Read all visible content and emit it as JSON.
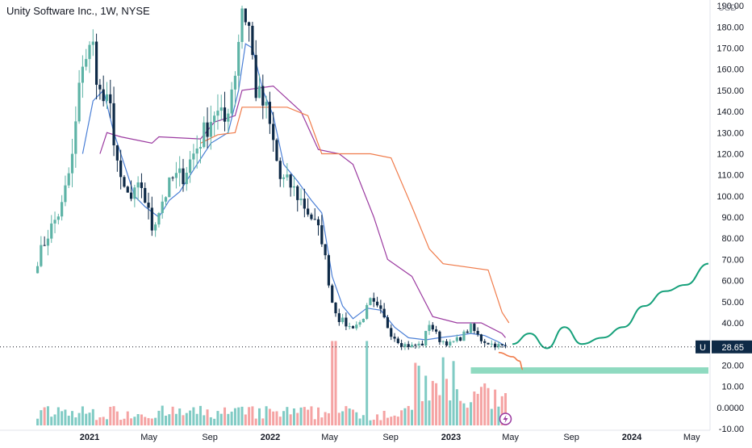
{
  "header": {
    "title": "Unity Software Inc., 1W, NYSE",
    "currency": "USD"
  },
  "last_price": {
    "symbol": "U",
    "value": "28.65"
  },
  "colors": {
    "up": "#5db3a6",
    "down": "#0e2a47",
    "vol_up": "#80cbc4",
    "vol_down": "#f5a3a3",
    "fast_line": "#4a7fd6",
    "mid_line": "#9b3aa0",
    "slow_line": "#f07b4a",
    "projection": "#15a07a",
    "zone": "#7bd3b5",
    "price_line": "#131722"
  },
  "chart_data": {
    "type": "candlestick",
    "title": "Unity Software Inc., 1W, NYSE",
    "y_axis": {
      "range": [
        -10,
        195
      ],
      "ticks": [
        "190.00",
        "180.00",
        "170.00",
        "160.00",
        "150.00",
        "140.00",
        "130.00",
        "120.00",
        "110.00",
        "100.00",
        "90.00",
        "80.00",
        "70.00",
        "60.00",
        "50.00",
        "40.00",
        "30.00",
        "20.00",
        "10.00",
        "0.0000",
        "-10.00"
      ],
      "tick_values": [
        190,
        180,
        170,
        160,
        150,
        140,
        130,
        120,
        110,
        100,
        90,
        80,
        70,
        60,
        50,
        40,
        30,
        20,
        10,
        0,
        -10
      ]
    },
    "x_axis": {
      "ticks": [
        {
          "label": "2021",
          "date": "2021-01-01",
          "bold": true
        },
        {
          "label": "May",
          "date": "2021-05-01",
          "bold": false
        },
        {
          "label": "Sep",
          "date": "2021-09-01",
          "bold": false
        },
        {
          "label": "2022",
          "date": "2022-01-01",
          "bold": true
        },
        {
          "label": "May",
          "date": "2022-05-01",
          "bold": false
        },
        {
          "label": "Sep",
          "date": "2022-09-01",
          "bold": false
        },
        {
          "label": "2023",
          "date": "2023-01-01",
          "bold": true
        },
        {
          "label": "May",
          "date": "2023-05-01",
          "bold": false
        },
        {
          "label": "Sep",
          "date": "2023-09-01",
          "bold": false
        },
        {
          "label": "2024",
          "date": "2024-01-01",
          "bold": true
        },
        {
          "label": "May",
          "date": "2024-05-01",
          "bold": false
        }
      ]
    },
    "price_anchors": [
      [
        "2020-09-18",
        70
      ],
      [
        "2020-10-09",
        82
      ],
      [
        "2020-11-06",
        95
      ],
      [
        "2020-11-27",
        118
      ],
      [
        "2020-12-18",
        165
      ],
      [
        "2021-01-08",
        170
      ],
      [
        "2021-01-22",
        148
      ],
      [
        "2021-02-12",
        140
      ],
      [
        "2021-03-05",
        105
      ],
      [
        "2021-03-26",
        98
      ],
      [
        "2021-04-16",
        105
      ],
      [
        "2021-05-07",
        85
      ],
      [
        "2021-05-28",
        98
      ],
      [
        "2021-06-18",
        108
      ],
      [
        "2021-07-09",
        110
      ],
      [
        "2021-07-30",
        120
      ],
      [
        "2021-08-20",
        130
      ],
      [
        "2021-09-10",
        140
      ],
      [
        "2021-10-01",
        135
      ],
      [
        "2021-10-22",
        160
      ],
      [
        "2021-11-05",
        190
      ],
      [
        "2021-11-19",
        180
      ],
      [
        "2021-12-03",
        150
      ],
      [
        "2021-12-24",
        140
      ],
      [
        "2022-01-07",
        125
      ],
      [
        "2022-01-21",
        108
      ],
      [
        "2022-02-11",
        105
      ],
      [
        "2022-03-04",
        98
      ],
      [
        "2022-03-25",
        90
      ],
      [
        "2022-04-15",
        80
      ],
      [
        "2022-05-06",
        50
      ],
      [
        "2022-05-20",
        42
      ],
      [
        "2022-06-10",
        38
      ],
      [
        "2022-07-01",
        40
      ],
      [
        "2022-07-22",
        50
      ],
      [
        "2022-08-12",
        45
      ],
      [
        "2022-09-02",
        35
      ],
      [
        "2022-09-23",
        30
      ],
      [
        "2022-10-14",
        29
      ],
      [
        "2022-11-04",
        30
      ],
      [
        "2022-11-18",
        40
      ],
      [
        "2022-12-09",
        32
      ],
      [
        "2022-12-30",
        30
      ],
      [
        "2023-01-20",
        33
      ],
      [
        "2023-02-10",
        38
      ],
      [
        "2023-03-03",
        32
      ],
      [
        "2023-03-24",
        30
      ],
      [
        "2023-04-14",
        29
      ],
      [
        "2023-04-21",
        28.65
      ]
    ],
    "volume_range": [
      0,
      22
    ],
    "indicator_lines": [
      {
        "id": "fast",
        "points": [
          [
            "2020-12-18",
            120
          ],
          [
            "2021-01-08",
            145
          ],
          [
            "2021-01-29",
            150
          ],
          [
            "2021-02-19",
            130
          ],
          [
            "2021-03-12",
            115
          ],
          [
            "2021-04-02",
            100
          ],
          [
            "2021-04-23",
            95
          ],
          [
            "2021-05-21",
            90
          ],
          [
            "2021-06-11",
            98
          ],
          [
            "2021-07-02",
            102
          ],
          [
            "2021-08-06",
            115
          ],
          [
            "2021-09-03",
            125
          ],
          [
            "2021-10-08",
            130
          ],
          [
            "2021-10-29",
            150
          ],
          [
            "2021-11-12",
            172
          ],
          [
            "2021-11-26",
            170
          ],
          [
            "2021-12-17",
            150
          ],
          [
            "2022-01-07",
            138
          ],
          [
            "2022-01-28",
            115
          ],
          [
            "2022-02-25",
            107
          ],
          [
            "2022-03-25",
            98
          ],
          [
            "2022-04-15",
            92
          ],
          [
            "2022-05-06",
            62
          ],
          [
            "2022-05-27",
            48
          ],
          [
            "2022-06-17",
            42
          ],
          [
            "2022-07-15",
            47
          ],
          [
            "2022-08-12",
            46
          ],
          [
            "2022-09-09",
            38
          ],
          [
            "2022-10-07",
            33
          ],
          [
            "2022-11-11",
            32
          ],
          [
            "2022-12-09",
            33
          ],
          [
            "2023-01-13",
            34
          ],
          [
            "2023-02-10",
            35
          ],
          [
            "2023-03-10",
            34
          ],
          [
            "2023-04-07",
            31
          ],
          [
            "2023-04-21",
            29
          ]
        ]
      },
      {
        "id": "mid",
        "points": [
          [
            "2021-01-22",
            120
          ],
          [
            "2021-02-05",
            130
          ],
          [
            "2021-03-05",
            128
          ],
          [
            "2021-05-07",
            125
          ],
          [
            "2021-05-21",
            128
          ],
          [
            "2021-08-13",
            127
          ],
          [
            "2021-09-10",
            135
          ],
          [
            "2021-10-22",
            138
          ],
          [
            "2021-11-05",
            150
          ],
          [
            "2022-01-07",
            152
          ],
          [
            "2022-03-04",
            140
          ],
          [
            "2022-04-08",
            122
          ],
          [
            "2022-05-20",
            120
          ],
          [
            "2022-06-17",
            115
          ],
          [
            "2022-07-29",
            90
          ],
          [
            "2022-08-26",
            70
          ],
          [
            "2022-10-14",
            62
          ],
          [
            "2022-11-25",
            43
          ],
          [
            "2023-01-13",
            40
          ],
          [
            "2023-03-03",
            40
          ],
          [
            "2023-04-14",
            35
          ],
          [
            "2023-04-21",
            33
          ]
        ]
      },
      {
        "id": "slow",
        "points": [
          [
            "2021-08-13",
            125
          ],
          [
            "2021-09-17",
            129
          ],
          [
            "2021-10-22",
            130
          ],
          [
            "2021-11-05",
            142
          ],
          [
            "2022-02-04",
            142
          ],
          [
            "2022-03-18",
            138
          ],
          [
            "2022-04-15",
            120
          ],
          [
            "2022-07-22",
            120
          ],
          [
            "2022-09-02",
            118
          ],
          [
            "2022-10-14",
            95
          ],
          [
            "2022-11-18",
            75
          ],
          [
            "2022-12-16",
            68
          ],
          [
            "2023-03-17",
            65
          ],
          [
            "2023-04-14",
            45
          ],
          [
            "2023-04-28",
            40
          ]
        ]
      }
    ],
    "projection": [
      [
        "2023-05-05",
        30
      ],
      [
        "2023-06-09",
        35
      ],
      [
        "2023-07-14",
        28
      ],
      [
        "2023-08-18",
        38
      ],
      [
        "2023-09-22",
        30
      ],
      [
        "2023-11-03",
        33
      ],
      [
        "2023-12-15",
        38
      ],
      [
        "2024-01-26",
        48
      ],
      [
        "2024-03-08",
        55
      ],
      [
        "2024-04-19",
        58
      ],
      [
        "2024-06-14",
        68
      ]
    ],
    "projection_down": [
      [
        "2023-04-07",
        26
      ],
      [
        "2023-05-05",
        24
      ],
      [
        "2023-05-19",
        22
      ],
      [
        "2023-05-26",
        18
      ]
    ],
    "support_zone": {
      "from": "2023-02-10",
      "to": "2024-06-14",
      "low": 16,
      "high": 19
    }
  }
}
